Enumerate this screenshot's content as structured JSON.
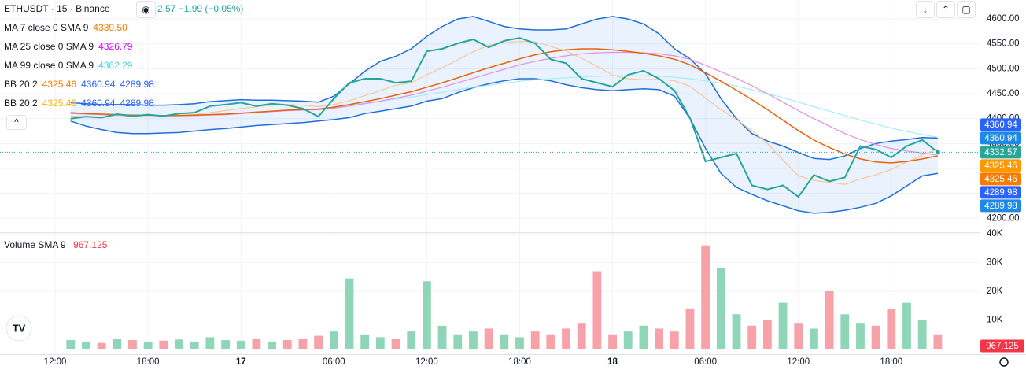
{
  "chart_data": [
    {
      "type": "line",
      "title": "ETHUSDT · 15 · Binance",
      "price": "2.57",
      "change": "−1.99 (−0.05%)",
      "change_color": "#26a69a",
      "x": [
        13,
        14,
        15,
        16,
        17,
        18,
        19,
        20,
        21,
        22,
        23,
        24,
        25,
        26,
        27,
        28,
        29,
        30,
        31,
        32,
        33,
        34,
        35,
        36,
        37,
        38,
        39,
        40,
        41,
        42,
        43,
        44,
        45,
        46,
        47,
        48,
        49,
        50,
        51,
        52,
        53,
        54,
        55,
        56,
        57,
        58,
        59,
        60,
        61,
        62,
        63,
        64,
        65,
        66,
        67,
        68,
        69
      ],
      "xlim": [
        8.44,
        71.7
      ],
      "xticks": [
        {
          "value": 12,
          "label": "12:00"
        },
        {
          "value": 18,
          "label": "18:00"
        },
        {
          "value": 24,
          "label": "17"
        },
        {
          "value": 30,
          "label": "06:00"
        },
        {
          "value": 36,
          "label": "12:00"
        },
        {
          "value": 42,
          "label": "18:00"
        },
        {
          "value": 48,
          "label": "18"
        },
        {
          "value": 54,
          "label": "06:00"
        },
        {
          "value": 60,
          "label": "12:00"
        },
        {
          "value": 66,
          "label": "18:00"
        }
      ],
      "ylim": [
        4172,
        4638
      ],
      "yticks": [
        {
          "value": 4200,
          "label": "4200.00"
        },
        {
          "value": 4250,
          "label": "4250.00"
        },
        {
          "value": 4300,
          "label": "4300.00"
        },
        {
          "value": 4350,
          "label": "4350.00"
        },
        {
          "value": 4400,
          "label": "4400.00"
        },
        {
          "value": 4450,
          "label": "4450.00"
        },
        {
          "value": 4500,
          "label": "4500.00"
        },
        {
          "value": 4550,
          "label": "4550.00"
        },
        {
          "value": 4600,
          "label": "4600.00"
        }
      ],
      "grid": true,
      "series": [
        {
          "color": "#c7eaff",
          "width": 1.5,
          "band_fill": "rgba(41,130,235,0.10)",
          "values": [
            4432,
            4430,
            4428,
            4428,
            4428,
            4427,
            4427,
            4428,
            4430,
            4434,
            4436,
            4438,
            4437,
            4437,
            4436,
            4435,
            4433,
            4445,
            4470,
            4495,
            4515,
            4525,
            4540,
            4565,
            4585,
            4600,
            4605,
            4595,
            4585,
            4580,
            4578,
            4578,
            4580,
            4590,
            4600,
            4605,
            4600,
            4590,
            4570,
            4540,
            4520,
            4490,
            4440,
            4400,
            4370,
            4355,
            4345,
            4332,
            4320,
            4318,
            4325,
            4340,
            4350,
            4355,
            4358,
            4362,
            4360.94
          ]
        },
        {
          "color": "#1e6fd9",
          "width": 1.5,
          "values": [
            4395,
            4385,
            4378,
            4372,
            4370,
            4370,
            4371,
            4372,
            4375,
            4378,
            4380,
            4383,
            4386,
            4388,
            4390,
            4392,
            4395,
            4398,
            4402,
            4410,
            4415,
            4420,
            4425,
            4435,
            4440,
            4452,
            4462,
            4470,
            4476,
            4480,
            4480,
            4476,
            4468,
            4462,
            4458,
            4456,
            4458,
            4460,
            4458,
            4445,
            4400,
            4340,
            4290,
            4262,
            4248,
            4235,
            4225,
            4215,
            4210,
            4212,
            4216,
            4222,
            4230,
            4245,
            4265,
            4285,
            4289.98
          ]
        },
        {
          "color": "#a5eef5",
          "width": 1.2,
          "values": [
            null,
            null,
            null,
            null,
            null,
            null,
            null,
            null,
            null,
            null,
            null,
            null,
            null,
            null,
            null,
            4418,
            4420,
            4423,
            4427,
            4431,
            4435,
            4439,
            4443,
            4448,
            4453,
            4458,
            4463,
            4467,
            4471,
            4475,
            4478,
            4480,
            4482,
            4484,
            4485,
            4486,
            4486,
            4486,
            4485,
            4483,
            4480,
            4476,
            4471,
            4465,
            4458,
            4450,
            4442,
            4433,
            4424,
            4415,
            4406,
            4397,
            4389,
            4381,
            4374,
            4368,
            4362.29
          ]
        },
        {
          "color": "#e48ee4",
          "width": 1.2,
          "values": [
            4410,
            4409,
            4408,
            4407,
            4407,
            4406,
            4406,
            4406,
            4406,
            4407,
            4408,
            4410,
            4412,
            4414,
            4416,
            4417,
            4418,
            4421,
            4425,
            4430,
            4435,
            4441,
            4447,
            4455,
            4463,
            4472,
            4481,
            4490,
            4499,
            4508,
            4515,
            4521,
            4526,
            4530,
            4532,
            4533,
            4533,
            4532,
            4530,
            4526,
            4519,
            4507,
            4494,
            4481,
            4466,
            4450,
            4433,
            4416,
            4400,
            4385,
            4370,
            4358,
            4348,
            4340,
            4335,
            4331,
            4326.79
          ]
        },
        {
          "color": "#f7c59a",
          "width": 1.2,
          "values": [
            4405,
            4404,
            4403,
            4404,
            4405,
            4406,
            4406,
            4407,
            4408,
            4412,
            4416,
            4420,
            4424,
            4427,
            4428,
            4427,
            4424,
            4428,
            4436,
            4446,
            4456,
            4467,
            4472,
            4488,
            4502,
            4518,
            4534,
            4547,
            4552,
            4555,
            4554,
            4545,
            4536,
            4521,
            4505,
            4487,
            4480,
            4478,
            4479,
            4476,
            4465,
            4441,
            4418,
            4398,
            4376,
            4350,
            4317,
            4285,
            4276,
            4272,
            4268,
            4279,
            4287,
            4298,
            4313,
            4327,
            4339.5
          ]
        },
        {
          "color": "#e8620c",
          "width": 1.5,
          "values": [
            4412,
            4410,
            4409,
            4408,
            4407,
            4407,
            4406,
            4406,
            4407,
            4408,
            4409,
            4411,
            4413,
            4415,
            4417,
            4418,
            4419,
            4423,
            4428,
            4434,
            4440,
            4447,
            4454,
            4463,
            4472,
            4482,
            4492,
            4502,
            4511,
            4520,
            4528,
            4534,
            4538,
            4540,
            4540,
            4538,
            4535,
            4531,
            4526,
            4519,
            4508,
            4492,
            4475,
            4457,
            4438,
            4418,
            4397,
            4376,
            4357,
            4342,
            4329,
            4319,
            4313,
            4311,
            4314,
            4319,
            4325.46
          ]
        },
        {
          "color": "#26a69a",
          "width": 2,
          "last_line": true,
          "values": [
            4400,
            4404,
            4402,
            4409,
            4405,
            4408,
            4405,
            4410,
            4412,
            4425,
            4428,
            4432,
            4425,
            4430,
            4427,
            4420,
            4404,
            4440,
            4472,
            4480,
            4480,
            4472,
            4475,
            4535,
            4540,
            4551,
            4559,
            4543,
            4556,
            4562,
            4551,
            4519,
            4511,
            4480,
            4472,
            4464,
            4488,
            4496,
            4480,
            4456,
            4401,
            4314,
            4322,
            4330,
            4266,
            4258,
            4266,
            4243,
            4287,
            4274,
            4282,
            4345,
            4338,
            4322,
            4345,
            4357,
            4332.57
          ]
        }
      ],
      "legend": [
        {
          "name": "MA 7 close 0 SMA 9",
          "values": [
            {
              "value": 4339.5,
              "label": "4339.50",
              "color": "#f57c00"
            }
          ]
        },
        {
          "name": "MA 25 close 0 SMA 9",
          "values": [
            {
              "value": 4326.79,
              "color": "#d500f9"
            }
          ]
        },
        {
          "name": "MA 99 close 0 SMA 9",
          "values": [
            {
              "value": 4362.29,
              "color": "#4dd0e1"
            }
          ]
        },
        {
          "name": "BB 20 2",
          "values": [
            {
              "value": 4325.46,
              "color": "#f57c00"
            },
            {
              "value": 4360.94,
              "color": "#2962ff"
            },
            {
              "value": 4289.98,
              "color": "#2962ff"
            }
          ]
        },
        {
          "name": "BB 20 2",
          "values": [
            {
              "value": 4325.46,
              "color": "#ffb300"
            },
            {
              "value": 4360.94,
              "color": "#2962ff"
            },
            {
              "value": 4289.98,
              "color": "#2962ff"
            }
          ]
        }
      ],
      "price_tags": [
        {
          "value": 4360.94,
          "color": "#2962ff"
        },
        {
          "value": 4360.94,
          "color": "#1e88e5"
        },
        {
          "value": 4332.57,
          "color": "#26a69a"
        },
        {
          "value": 4325.46,
          "color": "#ff9800"
        },
        {
          "value": 4325.46,
          "color": "#f57c00"
        },
        {
          "value": 4289.98,
          "color": "#2962ff"
        },
        {
          "value": 4289.98,
          "color": "#1e88e5"
        }
      ]
    },
    {
      "type": "bar",
      "title": "Volume SMA 9",
      "sma": 967.125,
      "sma_color": "#f23645",
      "x": [
        13,
        14,
        15,
        16,
        17,
        18,
        19,
        20,
        21,
        22,
        23,
        24,
        25,
        26,
        27,
        28,
        29,
        30,
        31,
        32,
        33,
        34,
        35,
        36,
        37,
        38,
        39,
        40,
        41,
        42,
        43,
        44,
        45,
        46,
        47,
        48,
        49,
        50,
        51,
        52,
        53,
        54,
        55,
        56,
        57,
        58,
        59,
        60,
        61,
        62,
        63,
        64,
        65,
        66,
        67,
        68,
        69
      ],
      "values": [
        3000,
        2500,
        2000,
        3500,
        3000,
        2500,
        2800,
        3200,
        2500,
        4000,
        3000,
        2800,
        3500,
        2500,
        3000,
        3500,
        4500,
        6000,
        24500,
        5000,
        4000,
        3500,
        6000,
        23500,
        8000,
        5000,
        6000,
        7000,
        5000,
        4000,
        6000,
        5000,
        7000,
        9000,
        27000,
        5000,
        6000,
        8000,
        7000,
        6000,
        14000,
        36000,
        28000,
        12000,
        8000,
        10000,
        16000,
        9000,
        7000,
        20000,
        12000,
        9000,
        8000,
        14000,
        16000,
        10000,
        5000
      ],
      "up_color": "#8fd6b8",
      "down_color": "#f7a1a8",
      "ylim": [
        0,
        40300
      ],
      "yticks": [
        {
          "value": 10000,
          "label": "10K"
        },
        {
          "value": 20000,
          "label": "20K"
        },
        {
          "value": 30000,
          "label": "30K"
        },
        {
          "value": 40000,
          "label": "40K"
        }
      ],
      "grid": true
    }
  ]
}
